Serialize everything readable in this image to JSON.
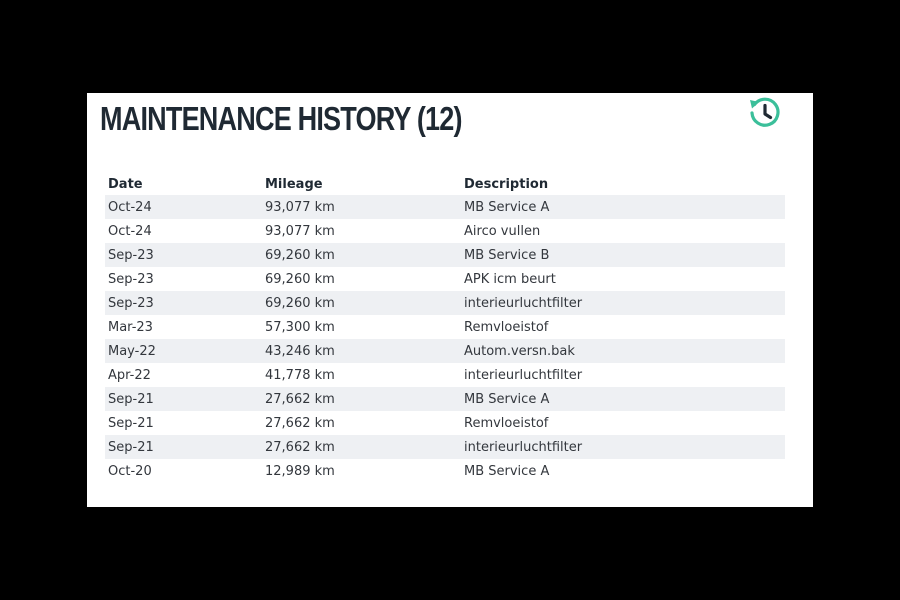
{
  "card": {
    "title": "MAINTENANCE HISTORY (12)",
    "icon": "history-icon",
    "accent_color": "#3bbf9a"
  },
  "table": {
    "columns": {
      "date": "Date",
      "mileage": "Mileage",
      "description": "Description"
    },
    "rows": [
      {
        "date": "Oct-24",
        "mileage": "93,077 km",
        "description": "MB Service A"
      },
      {
        "date": "Oct-24",
        "mileage": "93,077 km",
        "description": "Airco vullen"
      },
      {
        "date": "Sep-23",
        "mileage": "69,260 km",
        "description": "MB Service B"
      },
      {
        "date": "Sep-23",
        "mileage": "69,260 km",
        "description": "APK icm beurt"
      },
      {
        "date": "Sep-23",
        "mileage": "69,260 km",
        "description": "interieurluchtfilter"
      },
      {
        "date": "Mar-23",
        "mileage": "57,300 km",
        "description": "Remvloeistof"
      },
      {
        "date": "May-22",
        "mileage": "43,246 km",
        "description": "Autom.versn.bak"
      },
      {
        "date": "Apr-22",
        "mileage": "41,778 km",
        "description": "interieurluchtfilter"
      },
      {
        "date": "Sep-21",
        "mileage": "27,662 km",
        "description": "MB Service A"
      },
      {
        "date": "Sep-21",
        "mileage": "27,662 km",
        "description": "Remvloeistof"
      },
      {
        "date": "Sep-21",
        "mileage": "27,662 km",
        "description": "interieurluchtfilter"
      },
      {
        "date": "Oct-20",
        "mileage": "12,989 km",
        "description": "MB Service A"
      }
    ]
  }
}
